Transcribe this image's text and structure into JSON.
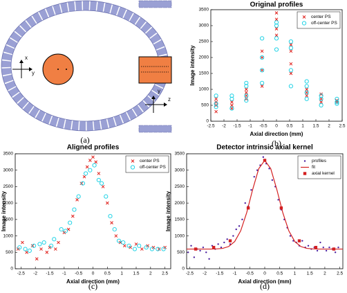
{
  "panel_a": {
    "label": "(a)",
    "axis_labels": [
      "x",
      "y",
      "y",
      "z"
    ]
  },
  "chart_data": [
    {
      "type": "scatter",
      "title": "Original profiles",
      "panel_label": "(b)",
      "x_label": "Axial direction (mm)",
      "y_label": "Image intensity",
      "xlim": [
        -2.5,
        2.5
      ],
      "ylim": [
        0,
        3500
      ],
      "xticks": [
        -2.5,
        -2,
        -1.5,
        -1,
        -0.5,
        0,
        0.5,
        1,
        1.5,
        2,
        2.5
      ],
      "yticks": [
        0,
        500,
        1000,
        1500,
        2000,
        2500,
        3000,
        3500
      ],
      "legend": "upper right",
      "series": [
        {
          "name": "center PS",
          "color": "#e0201b",
          "marker": "x",
          "x": [
            -2.3,
            -2.3,
            -2.3,
            -2.3,
            -1.7,
            -1.7,
            -1.7,
            -1.15,
            -1.15,
            -1.15,
            -1.15,
            -0.55,
            -0.55,
            -0.55,
            -0.55,
            0,
            0,
            0,
            0,
            0.55,
            0.55,
            0.55,
            0.55,
            1.15,
            1.15,
            1.15,
            1.7,
            1.7,
            1.7,
            2.3,
            2.3
          ],
          "values": [
            300,
            500,
            600,
            700,
            400,
            500,
            600,
            700,
            800,
            900,
            1000,
            1100,
            1600,
            2000,
            2200,
            2700,
            2900,
            3200,
            3400,
            1500,
            1800,
            2200,
            2400,
            800,
            900,
            1000,
            600,
            700,
            850,
            600,
            650
          ]
        },
        {
          "name": "off-center PS",
          "color": "#22d3e6",
          "marker": "o",
          "x": [
            -2.3,
            -2.3,
            -2.3,
            -1.7,
            -1.7,
            -1.7,
            -1.15,
            -1.15,
            -1.15,
            -1.15,
            -0.55,
            -0.55,
            -0.55,
            -0.55,
            0,
            0,
            0,
            0,
            0.55,
            0.55,
            0.55,
            0.55,
            1.15,
            1.15,
            1.15,
            1.15,
            1.7,
            1.7,
            1.7,
            2.3,
            2.3,
            2.3
          ],
          "values": [
            450,
            550,
            800,
            400,
            700,
            800,
            650,
            800,
            1100,
            1200,
            1200,
            1600,
            2000,
            2600,
            2250,
            2600,
            3000,
            3100,
            1100,
            1600,
            2300,
            2500,
            700,
            900,
            1100,
            1250,
            500,
            700,
            800,
            550,
            600,
            700
          ]
        }
      ]
    },
    {
      "type": "scatter",
      "title": "Aligned profiles",
      "panel_label": "(c)",
      "x_label": "Axial direction (mm)",
      "y_label": "Image intensity",
      "xlim": [
        -2.7,
        2.7
      ],
      "ylim": [
        0,
        3500
      ],
      "xticks": [
        -2.5,
        -2,
        -1.5,
        -1,
        -0.5,
        0,
        0.5,
        1,
        1.5,
        2,
        2.5
      ],
      "yticks": [
        0,
        500,
        1000,
        1500,
        2000,
        2500,
        3000,
        3500
      ],
      "legend": "upper right",
      "series": [
        {
          "name": "center PS",
          "color": "#e0201b",
          "marker": "x",
          "x": [
            -2.6,
            -2.45,
            -2.3,
            -2.1,
            -1.95,
            -1.8,
            -1.6,
            -1.5,
            -1.3,
            -1.2,
            -1.0,
            -0.85,
            -0.7,
            -0.55,
            -0.4,
            -0.3,
            -0.2,
            -0.1,
            0,
            0.1,
            0.2,
            0.35,
            0.5,
            0.65,
            0.8,
            0.95,
            1.1,
            1.3,
            1.5,
            1.7,
            1.9,
            2.1,
            2.3,
            2.5
          ],
          "values": [
            600,
            800,
            500,
            700,
            300,
            600,
            500,
            650,
            600,
            800,
            1100,
            1200,
            1600,
            2100,
            2600,
            2800,
            3100,
            3300,
            3400,
            3250,
            2900,
            2500,
            2000,
            1400,
            1000,
            800,
            700,
            650,
            750,
            600,
            700,
            650,
            600,
            650
          ]
        },
        {
          "name": "off-center PS",
          "color": "#22d3e6",
          "marker": "o",
          "x": [
            -2.55,
            -2.35,
            -2.2,
            -2.05,
            -1.85,
            -1.7,
            -1.45,
            -1.35,
            -1.1,
            -0.95,
            -0.8,
            -0.65,
            -0.5,
            -0.35,
            -0.25,
            -0.1,
            0.05,
            0.2,
            0.3,
            0.45,
            0.6,
            0.75,
            0.9,
            1.05,
            1.25,
            1.45,
            1.6,
            1.85,
            2.05,
            2.25,
            2.45
          ],
          "values": [
            650,
            600,
            550,
            700,
            750,
            800,
            700,
            900,
            1200,
            1150,
            1400,
            1800,
            2200,
            2600,
            2900,
            3000,
            3150,
            2700,
            2600,
            2200,
            1600,
            1200,
            850,
            800,
            700,
            600,
            700,
            650,
            600,
            600,
            600
          ]
        }
      ]
    },
    {
      "type": "scatter",
      "title": "Detector intrinsic axial kernel",
      "panel_label": "(d)",
      "x_label": "Axial direction (mm)",
      "y_label": "Image intensity",
      "xlim": [
        -2.6,
        2.6
      ],
      "ylim": [
        0,
        3500
      ],
      "xticks": [
        -2.5,
        -2,
        -1.5,
        -1,
        -0.5,
        0,
        0.5,
        1,
        1.5,
        2,
        2.5
      ],
      "yticks": [
        0,
        500,
        1000,
        1500,
        2000,
        2500,
        3000,
        3500
      ],
      "legend": "upper right",
      "series": [
        {
          "name": "profiles",
          "color": "#4b1fa0",
          "marker": "dot",
          "x": [
            -2.55,
            -2.45,
            -2.35,
            -2.25,
            -2.15,
            -2.05,
            -1.95,
            -1.85,
            -1.75,
            -1.65,
            -1.55,
            -1.45,
            -1.35,
            -1.25,
            -1.15,
            -1.05,
            -0.95,
            -0.85,
            -0.75,
            -0.65,
            -0.55,
            -0.45,
            -0.35,
            -0.25,
            -0.15,
            -0.05,
            0.05,
            0.15,
            0.25,
            0.35,
            0.45,
            0.55,
            0.65,
            0.75,
            0.85,
            0.95,
            1.05,
            1.15,
            1.25,
            1.35,
            1.45,
            1.55,
            1.65,
            1.75,
            1.85,
            1.95,
            2.05,
            2.15,
            2.25,
            2.35,
            2.45
          ],
          "values": [
            500,
            700,
            350,
            600,
            550,
            650,
            500,
            300,
            700,
            600,
            750,
            650,
            800,
            900,
            750,
            1000,
            1200,
            1300,
            1500,
            2000,
            1900,
            2400,
            2800,
            3000,
            3150,
            3400,
            3200,
            3050,
            2700,
            2500,
            2100,
            1800,
            1500,
            1250,
            1000,
            850,
            800,
            700,
            850,
            650,
            700,
            600,
            650,
            550,
            800,
            650,
            550,
            650,
            600,
            500,
            650
          ]
        },
        {
          "name": "fit",
          "color": "#d42020",
          "marker": "line",
          "x": [
            -2.6,
            -2.4,
            -2.2,
            -2.0,
            -1.8,
            -1.6,
            -1.4,
            -1.2,
            -1.0,
            -0.8,
            -0.6,
            -0.4,
            -0.2,
            0,
            0.2,
            0.4,
            0.6,
            0.8,
            1.0,
            1.2,
            1.4,
            1.6,
            1.8,
            2.0,
            2.2,
            2.4,
            2.6
          ],
          "values": [
            600,
            600,
            600,
            600,
            600,
            605,
            621,
            677,
            829,
            1156,
            1710,
            2419,
            3046,
            3300,
            3046,
            2419,
            1710,
            1156,
            829,
            677,
            621,
            605,
            600,
            600,
            600,
            600,
            600
          ]
        },
        {
          "name": "axial kernel",
          "color": "#d42020",
          "marker": "square",
          "x": [
            -2.3,
            -1.7,
            -1.15,
            -0.55,
            0,
            0.55,
            1.15,
            1.7,
            2.3
          ],
          "values": [
            600,
            650,
            850,
            1850,
            3300,
            1850,
            850,
            650,
            600
          ]
        }
      ]
    }
  ]
}
